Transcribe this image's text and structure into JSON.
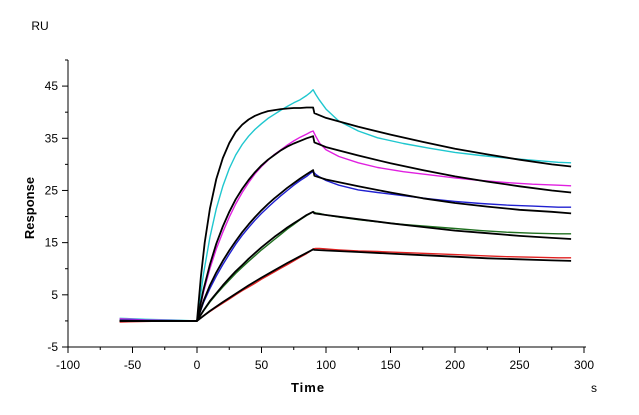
{
  "chart_data": {
    "type": "line",
    "title": "",
    "xlabel": "Time",
    "ylabel": "Response",
    "x_unit": "s",
    "y_unit": "RU",
    "xlim": [
      -100,
      300
    ],
    "ylim": [
      -5,
      50
    ],
    "x_ticks": [
      -100,
      -50,
      0,
      50,
      100,
      150,
      200,
      250,
      300
    ],
    "y_ticks": [
      -5,
      5,
      15,
      25,
      35,
      45
    ],
    "grid": false,
    "legend": "none",
    "series": [
      {
        "color": "#1fc7cf",
        "role": "measured",
        "x": [
          -60,
          -40,
          -20,
          0,
          5,
          10,
          15,
          20,
          25,
          30,
          35,
          40,
          45,
          50,
          55,
          60,
          65,
          70,
          75,
          80,
          85,
          88,
          90,
          92,
          95,
          100,
          110,
          125,
          140,
          160,
          180,
          200,
          220,
          240,
          260,
          280,
          290
        ],
        "y": [
          0.5,
          0.3,
          0.2,
          0.0,
          9.0,
          16.0,
          21.5,
          25.8,
          29.2,
          31.8,
          33.8,
          35.4,
          36.7,
          37.8,
          38.8,
          39.6,
          40.4,
          41.1,
          41.8,
          42.4,
          43.2,
          43.8,
          44.3,
          43.4,
          42.3,
          40.6,
          38.3,
          36.4,
          35.1,
          34.0,
          33.1,
          32.3,
          31.7,
          31.2,
          30.8,
          30.4,
          30.3
        ]
      },
      {
        "color": "#e020e0",
        "role": "measured",
        "x": [
          -60,
          -40,
          -20,
          0,
          5,
          10,
          15,
          20,
          25,
          30,
          35,
          40,
          45,
          50,
          55,
          60,
          65,
          70,
          75,
          80,
          85,
          88,
          90,
          92,
          95,
          100,
          110,
          125,
          140,
          160,
          180,
          200,
          220,
          240,
          260,
          280,
          290
        ],
        "y": [
          0.4,
          0.2,
          0.1,
          0.0,
          5.5,
          10.0,
          13.8,
          17.0,
          19.9,
          22.4,
          24.6,
          26.5,
          28.2,
          29.6,
          30.8,
          31.9,
          32.8,
          33.7,
          34.5,
          35.2,
          35.8,
          36.2,
          36.4,
          35.4,
          34.1,
          32.8,
          31.5,
          30.3,
          29.4,
          28.6,
          28.0,
          27.4,
          26.9,
          26.5,
          26.2,
          26.0,
          25.9
        ]
      },
      {
        "color": "#2020d0",
        "role": "measured",
        "x": [
          -60,
          -40,
          -20,
          0,
          5,
          10,
          15,
          20,
          25,
          30,
          35,
          40,
          45,
          50,
          55,
          60,
          65,
          70,
          75,
          80,
          85,
          88,
          90,
          92,
          95,
          100,
          110,
          125,
          140,
          160,
          180,
          200,
          220,
          240,
          260,
          280,
          290
        ],
        "y": [
          0.2,
          0.1,
          0.0,
          0.0,
          3.5,
          6.2,
          8.6,
          10.8,
          12.8,
          14.7,
          16.4,
          17.9,
          19.3,
          20.6,
          21.8,
          22.9,
          24.0,
          25.0,
          26.0,
          26.9,
          27.7,
          28.3,
          28.6,
          28.1,
          27.6,
          26.9,
          26.0,
          25.1,
          24.6,
          24.0,
          23.4,
          22.9,
          22.5,
          22.2,
          22.0,
          21.8,
          21.8
        ]
      },
      {
        "color": "#207020",
        "role": "measured",
        "x": [
          -60,
          -40,
          -20,
          0,
          5,
          10,
          15,
          20,
          25,
          30,
          35,
          40,
          45,
          50,
          55,
          60,
          65,
          70,
          75,
          80,
          85,
          88,
          90,
          92,
          95,
          100,
          110,
          125,
          140,
          160,
          180,
          200,
          220,
          240,
          260,
          280,
          290
        ],
        "y": [
          0.1,
          0.0,
          0.0,
          0.0,
          1.9,
          3.6,
          5.1,
          6.5,
          7.8,
          9.1,
          10.3,
          11.4,
          12.5,
          13.6,
          14.6,
          15.6,
          16.6,
          17.6,
          18.5,
          19.4,
          20.2,
          20.6,
          20.9,
          20.7,
          20.6,
          20.3,
          19.9,
          19.4,
          19.0,
          18.5,
          18.1,
          17.7,
          17.3,
          17.0,
          16.8,
          16.7,
          16.7
        ]
      },
      {
        "color": "#e02020",
        "role": "measured",
        "x": [
          -60,
          -40,
          -20,
          0,
          5,
          10,
          15,
          20,
          25,
          30,
          35,
          40,
          45,
          50,
          55,
          60,
          65,
          70,
          75,
          80,
          85,
          88,
          90,
          92,
          95,
          100,
          110,
          125,
          140,
          160,
          180,
          200,
          220,
          240,
          260,
          280,
          290
        ],
        "y": [
          -0.2,
          -0.1,
          0.0,
          0.0,
          1.0,
          1.8,
          2.6,
          3.4,
          4.2,
          5.0,
          5.8,
          6.5,
          7.2,
          8.0,
          8.7,
          9.4,
          10.1,
          10.8,
          11.5,
          12.2,
          12.9,
          13.4,
          13.8,
          13.9,
          13.9,
          13.8,
          13.6,
          13.4,
          13.3,
          13.1,
          12.9,
          12.7,
          12.5,
          12.3,
          12.2,
          12.1,
          12.1
        ]
      },
      {
        "color": "#000000",
        "role": "fit",
        "x": [
          -60,
          0,
          3,
          6,
          10,
          15,
          20,
          25,
          30,
          35,
          40,
          45,
          50,
          55,
          60,
          65,
          70,
          75,
          80,
          85,
          90,
          91,
          100,
          125,
          150,
          175,
          200,
          225,
          250,
          275,
          290
        ],
        "y": [
          0.0,
          0.0,
          8.5,
          15.0,
          21.5,
          27.2,
          31.2,
          34.1,
          36.2,
          37.6,
          38.6,
          39.3,
          39.8,
          40.2,
          40.4,
          40.6,
          40.7,
          40.8,
          40.8,
          40.9,
          40.9,
          39.8,
          38.9,
          37.2,
          35.7,
          34.3,
          33.0,
          31.9,
          30.9,
          30.0,
          29.6
        ]
      },
      {
        "color": "#000000",
        "role": "fit",
        "x": [
          -60,
          0,
          5,
          10,
          15,
          20,
          25,
          30,
          35,
          40,
          45,
          50,
          55,
          60,
          65,
          70,
          75,
          80,
          85,
          90,
          91,
          100,
          125,
          150,
          175,
          200,
          225,
          250,
          275,
          290
        ],
        "y": [
          0.0,
          0.0,
          6.0,
          10.8,
          14.8,
          18.1,
          20.9,
          23.3,
          25.3,
          27.0,
          28.5,
          29.8,
          30.9,
          31.8,
          32.7,
          33.4,
          34.0,
          34.5,
          35.0,
          35.4,
          34.2,
          33.3,
          31.7,
          30.2,
          28.9,
          27.7,
          26.7,
          25.8,
          25.0,
          24.6
        ]
      },
      {
        "color": "#000000",
        "role": "fit",
        "x": [
          -60,
          0,
          5,
          10,
          15,
          20,
          25,
          30,
          35,
          40,
          45,
          50,
          55,
          60,
          65,
          70,
          75,
          80,
          85,
          90,
          91,
          100,
          125,
          150,
          175,
          200,
          225,
          250,
          275,
          290
        ],
        "y": [
          0.0,
          0.0,
          3.8,
          6.8,
          9.3,
          11.5,
          13.5,
          15.3,
          17.0,
          18.5,
          19.9,
          21.2,
          22.4,
          23.5,
          24.5,
          25.5,
          26.4,
          27.3,
          28.1,
          28.9,
          27.8,
          27.1,
          25.8,
          24.6,
          23.5,
          22.6,
          21.9,
          21.3,
          20.9,
          20.6
        ]
      },
      {
        "color": "#000000",
        "role": "fit",
        "x": [
          -60,
          0,
          5,
          10,
          15,
          20,
          25,
          30,
          35,
          40,
          45,
          50,
          55,
          60,
          65,
          70,
          75,
          80,
          85,
          90,
          91,
          100,
          125,
          150,
          175,
          200,
          225,
          250,
          275,
          290
        ],
        "y": [
          0.0,
          0.0,
          2.0,
          3.8,
          5.3,
          6.8,
          8.2,
          9.5,
          10.7,
          11.9,
          13.0,
          14.1,
          15.1,
          16.1,
          17.0,
          17.9,
          18.7,
          19.5,
          20.3,
          20.9,
          20.6,
          20.3,
          19.5,
          18.7,
          18.0,
          17.3,
          16.8,
          16.3,
          15.9,
          15.7
        ]
      },
      {
        "color": "#000000",
        "role": "fit",
        "x": [
          -60,
          0,
          10,
          20,
          30,
          40,
          50,
          60,
          70,
          80,
          90,
          91,
          100,
          125,
          150,
          175,
          200,
          225,
          250,
          275,
          290
        ],
        "y": [
          0.0,
          0.0,
          1.9,
          3.6,
          5.2,
          6.8,
          8.3,
          9.7,
          11.1,
          12.4,
          13.7,
          13.6,
          13.5,
          13.2,
          12.9,
          12.6,
          12.3,
          12.0,
          11.8,
          11.6,
          11.5
        ]
      }
    ]
  }
}
